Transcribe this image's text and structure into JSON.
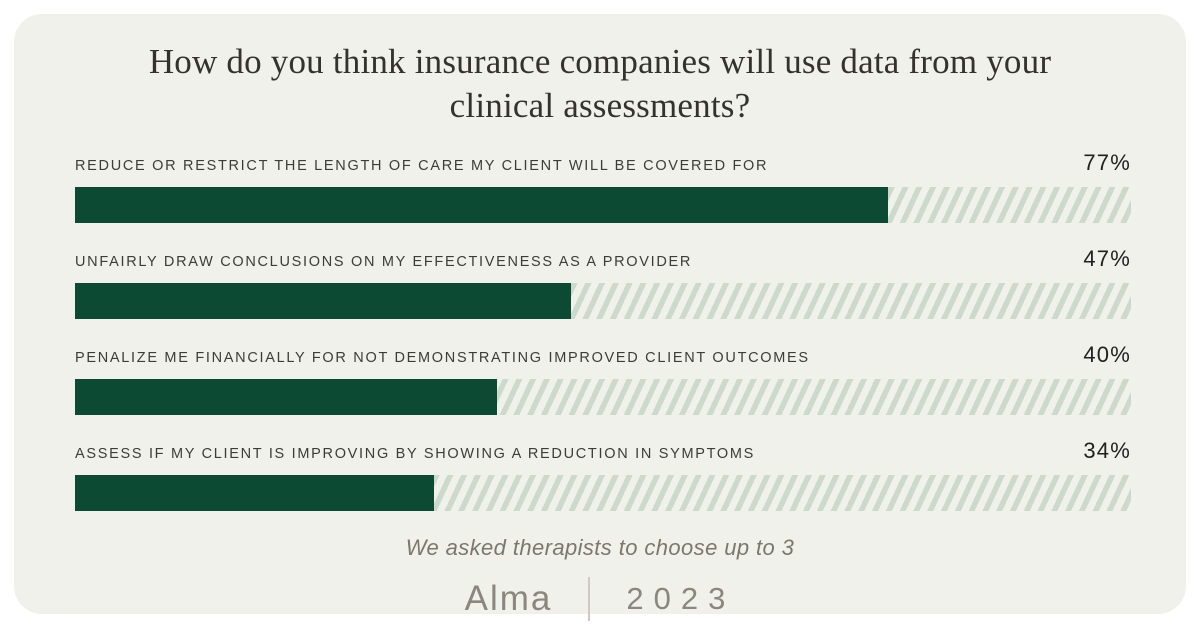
{
  "chart_data": {
    "type": "bar",
    "orientation": "horizontal",
    "title": "How do you think insurance companies will use data from your clinical assessments?",
    "categories": [
      "REDUCE OR RESTRICT THE LENGTH OF CARE MY CLIENT WILL BE COVERED FOR",
      "UNFAIRLY DRAW CONCLUSIONS ON MY EFFECTIVENESS AS A PROVIDER",
      "PENALIZE ME FINANCIALLY FOR NOT DEMONSTRATING IMPROVED CLIENT OUTCOMES",
      "ASSESS IF MY CLIENT IS IMPROVING BY SHOWING A REDUCTION IN SYMPTOMS"
    ],
    "values": [
      77,
      47,
      40,
      34
    ],
    "value_labels": [
      "77%",
      "47%",
      "40%",
      "34%"
    ],
    "xlim": [
      0,
      100
    ],
    "grid": false,
    "legend": "none",
    "note": "We asked therapists to choose up to 3",
    "source": "Alma",
    "year": "2023"
  },
  "title": {
    "line1": "How do you think insurance companies will use data from your",
    "line2": "clinical assessments?"
  },
  "rows": [
    {
      "label": "REDUCE OR RESTRICT THE LENGTH OF CARE MY CLIENT WILL BE COVERED FOR",
      "value": "77%",
      "pct": 77
    },
    {
      "label": "UNFAIRLY DRAW CONCLUSIONS ON MY EFFECTIVENESS AS A PROVIDER",
      "value": "47%",
      "pct": 47
    },
    {
      "label": "PENALIZE ME FINANCIALLY FOR NOT DEMONSTRATING IMPROVED CLIENT OUTCOMES",
      "value": "40%",
      "pct": 40
    },
    {
      "label": "ASSESS IF MY CLIENT IS IMPROVING BY SHOWING A REDUCTION IN SYMPTOMS",
      "value": "34%",
      "pct": 34
    }
  ],
  "footer": {
    "note": "We asked therapists to choose up to 3",
    "brand": "Alma",
    "year": "2023"
  },
  "colors": {
    "page_bg": "#ffffff",
    "card_bg": "#f0f1ea",
    "bar_fill": "#0d4a33",
    "stripe": "#ccd9cc",
    "title_text": "#33322d",
    "label_text": "#3d3d38",
    "value_text": "#21211e",
    "footer_text": "#7b776f",
    "brand_text": "#8b8680"
  }
}
